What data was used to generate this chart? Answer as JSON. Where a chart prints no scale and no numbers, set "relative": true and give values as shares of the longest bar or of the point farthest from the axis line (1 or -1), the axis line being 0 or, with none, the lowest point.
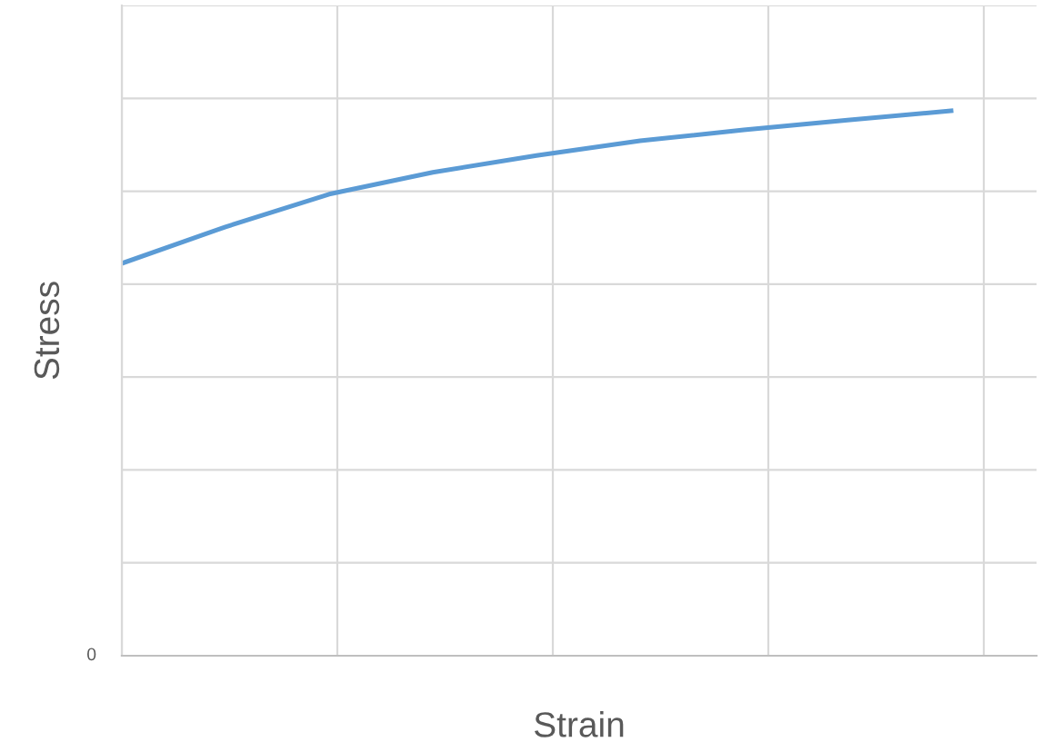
{
  "chart_data": {
    "type": "line",
    "relative": true,
    "xlabel": "Strain",
    "ylabel": "Stress",
    "categories": [
      null,
      null,
      null,
      null,
      null,
      null,
      null,
      null,
      null
    ],
    "series": [
      {
        "color": "#5b9bd5",
        "values": [
          0.72,
          0.787,
          0.847,
          0.887,
          0.918,
          0.945,
          0.965,
          0.983,
          1
        ]
      }
    ],
    "annotations": [
      "0"
    ],
    "grid": true,
    "marker": "none",
    "line_style": "solid",
    "tick_labels": false
  }
}
